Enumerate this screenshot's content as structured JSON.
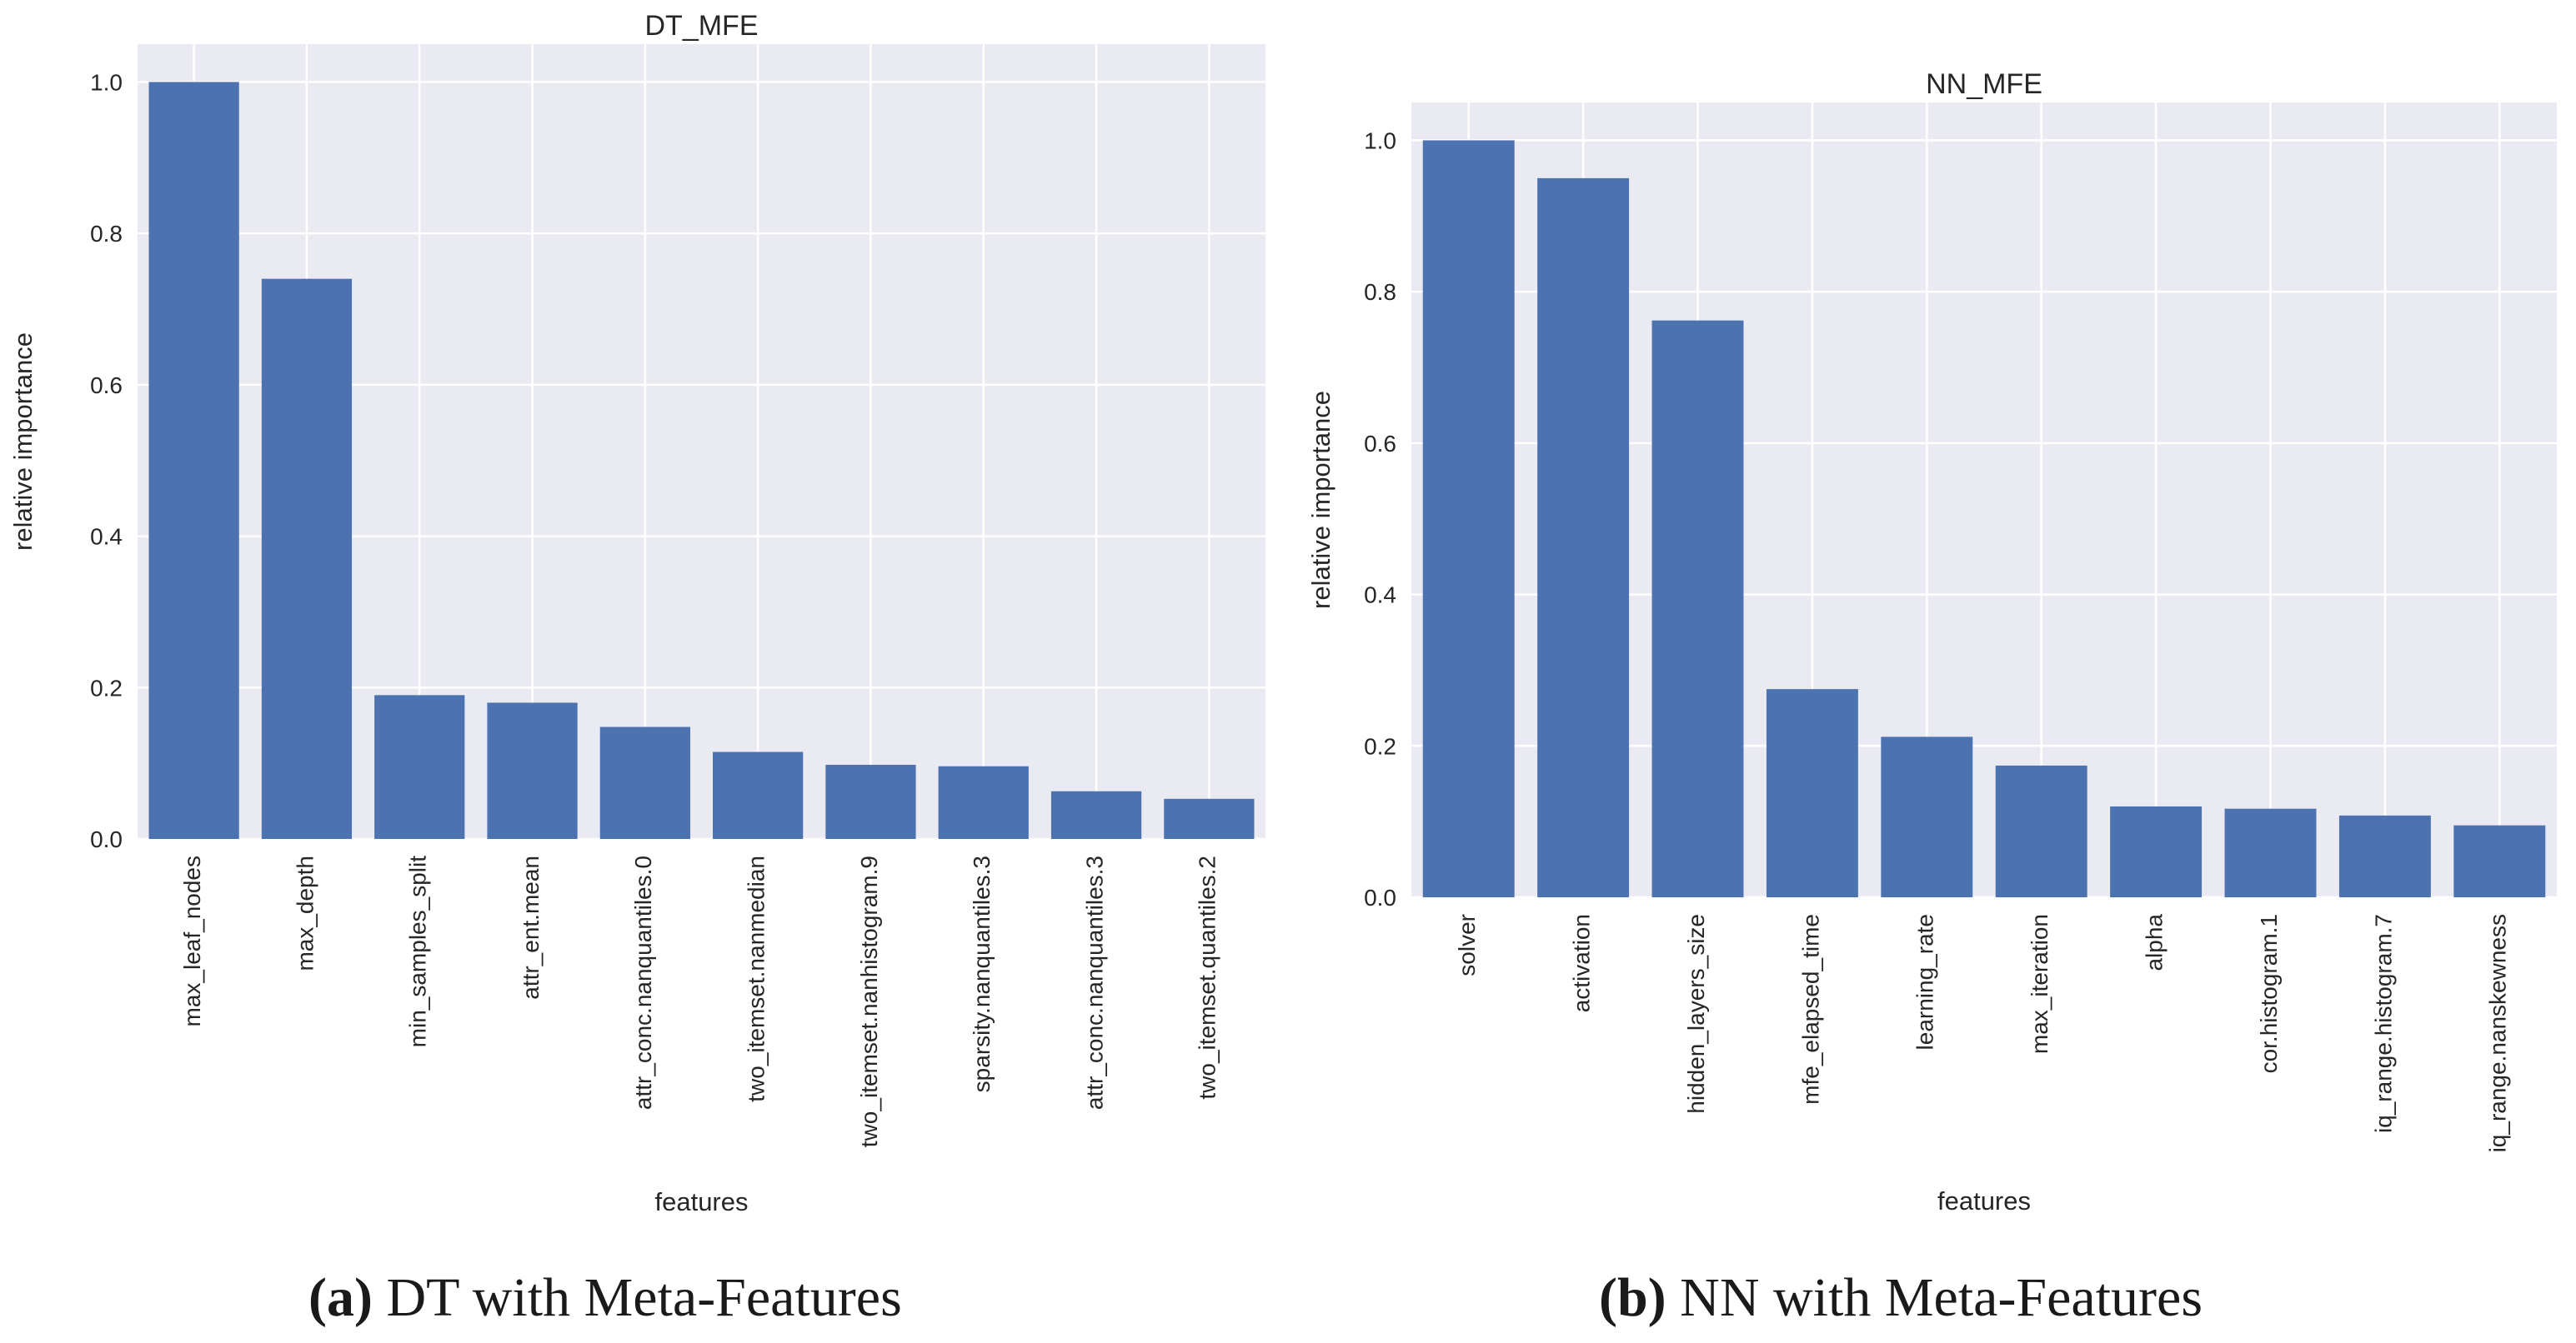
{
  "colors": {
    "bar": "#4C72B0",
    "background": "#EAEAF2",
    "grid": "#FFFFFF",
    "text": "#262626"
  },
  "chart_data": [
    {
      "type": "bar",
      "title": "DT_MFE",
      "xlabel": "features",
      "ylabel": "relative importance",
      "ylim": [
        0,
        1.05
      ],
      "yticks": [
        "0.0",
        "0.2",
        "0.4",
        "0.6",
        "0.8",
        "1.0"
      ],
      "grid": true,
      "categories": [
        "max_leaf_nodes",
        "max_depth",
        "min_samples_split",
        "attr_ent.mean",
        "attr_conc.nanquantiles.0",
        "two_itemset.nanmedian",
        "two_itemset.nanhistogram.9",
        "sparsity.nanquantiles.3",
        "attr_conc.nanquantiles.3",
        "two_itemset.quantiles.2"
      ],
      "values": [
        1.0,
        0.74,
        0.19,
        0.18,
        0.148,
        0.115,
        0.098,
        0.096,
        0.063,
        0.053
      ],
      "caption": {
        "label": "(a)",
        "text": " DT with Meta-Features"
      }
    },
    {
      "type": "bar",
      "title": "NN_MFE",
      "xlabel": "features",
      "ylabel": "relative importance",
      "ylim": [
        0,
        1.05
      ],
      "yticks": [
        "0.0",
        "0.2",
        "0.4",
        "0.6",
        "0.8",
        "1.0"
      ],
      "grid": true,
      "categories": [
        "solver",
        "activation",
        "hidden_layers_size",
        "mfe_elapsed_time",
        "learning_rate",
        "max_iteration",
        "alpha",
        "cor.histogram.1",
        "iq_range.histogram.7",
        "iq_range.nanskewness"
      ],
      "values": [
        1.0,
        0.95,
        0.762,
        0.275,
        0.212,
        0.174,
        0.12,
        0.117,
        0.108,
        0.095
      ],
      "caption": {
        "label": "(b)",
        "text": " NN with Meta-Features"
      }
    }
  ]
}
